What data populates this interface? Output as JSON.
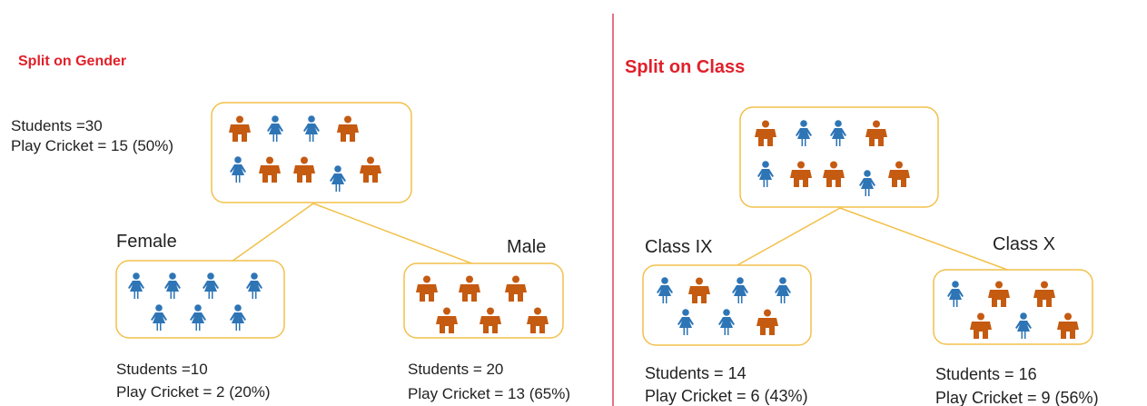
{
  "gender": {
    "title": "Split on Gender",
    "root": {
      "students": "Students =30",
      "cricket": "Play Cricket = 15 (50%)"
    },
    "left": {
      "label": "Female",
      "students": "Students =10",
      "cricket": "Play Cricket = 2 (20%)"
    },
    "right": {
      "label": "Male",
      "students": "Students = 20",
      "cricket": "Play Cricket = 13 (65%)"
    }
  },
  "class": {
    "title": "Split on Class",
    "left": {
      "label": "Class IX",
      "students": "Students = 14",
      "cricket": "Play Cricket = 6 (43%)"
    },
    "right": {
      "label": "Class X",
      "students": "Students = 16",
      "cricket": "Play Cricket = 9 (56%)"
    }
  }
}
